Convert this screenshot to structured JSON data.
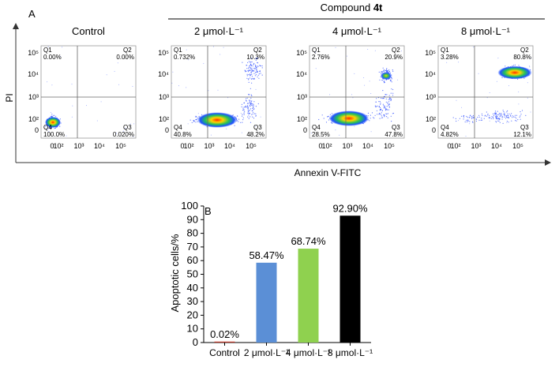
{
  "panel_a": {
    "label": "A",
    "header": {
      "prefix": "Compound ",
      "bold": "4t"
    },
    "y_axis_title": "PI",
    "x_axis_title": "Annexin V-FITC",
    "x_ticks": [
      "0",
      "10²",
      "10³",
      "10⁴",
      "10⁵"
    ],
    "y_ticks": [
      "0",
      "10²",
      "10³",
      "10⁴",
      "10⁵"
    ],
    "quadrant_names": [
      "Q1",
      "Q2",
      "Q3",
      "Q4"
    ]
  },
  "chart_data": [
    {
      "type": "scatter",
      "subtype": "flow-cytometry-quadrant",
      "panels": [
        {
          "title": "Control",
          "quadrants": {
            "Q1": "0.00%",
            "Q2": "0.00%",
            "Q3": "0.020%",
            "Q4": "100.0%"
          }
        },
        {
          "title": "2 μmol·L⁻¹",
          "quadrants": {
            "Q1": "0.732%",
            "Q2": "10.3%",
            "Q3": "48.2%",
            "Q4": "40.8%"
          }
        },
        {
          "title": "4 μmol·L⁻¹",
          "quadrants": {
            "Q1": "2.76%",
            "Q2": "20.9%",
            "Q3": "47.8%",
            "Q4": "28.5%"
          }
        },
        {
          "title": "8 μmol·L⁻¹",
          "quadrants": {
            "Q1": "3.28%",
            "Q2": "80.8%",
            "Q3": "12.1%",
            "Q4": "4.82%"
          }
        }
      ],
      "xlabel": "Annexin V-FITC",
      "ylabel": "PI",
      "scale": "log"
    },
    {
      "type": "bar",
      "label": "B",
      "categories": [
        "Control",
        "2 μmol·L⁻¹",
        "4 μmol·L⁻¹",
        "8 μmol·L⁻¹"
      ],
      "values": [
        0.02,
        58.47,
        68.74,
        92.9
      ],
      "value_labels": [
        "0.02%",
        "58.47%",
        "68.74%",
        "92.90%"
      ],
      "colors": [
        "#c0392b",
        "#5b8fd6",
        "#8fd14f",
        "#000000"
      ],
      "ylabel": "Apoptotic cells/%",
      "ylim": [
        0,
        100
      ],
      "yticks": [
        0,
        10,
        20,
        30,
        40,
        50,
        60,
        70,
        80,
        90,
        100
      ]
    }
  ]
}
